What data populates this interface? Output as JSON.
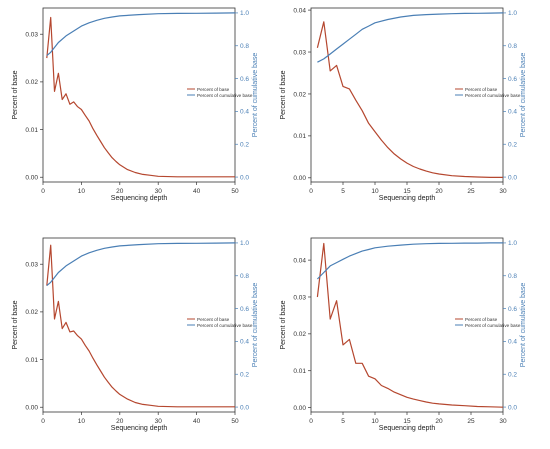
{
  "colors": {
    "percent": "#b5472f",
    "cumulative": "#4a7fb5",
    "axis": "#333333"
  },
  "chart_data": [
    {
      "type": "line",
      "xlabel": "Sequencing depth",
      "ylabel_left": "Percent of base",
      "ylabel_right": "Percent of cumulative base",
      "xlim": [
        0,
        50
      ],
      "xticks": [
        0,
        10,
        20,
        30,
        40,
        50
      ],
      "ylim_left": [
        -0.001,
        0.0355
      ],
      "yticks_left": [
        0.0,
        0.01,
        0.02,
        0.03
      ],
      "ylim_right": [
        -0.03,
        1.03
      ],
      "yticks_right": [
        0.0,
        0.2,
        0.4,
        0.6,
        0.8,
        1.0
      ],
      "legend": "right-center",
      "series": [
        {
          "name": "Percent of base",
          "axis": "left",
          "x": [
            1,
            2,
            3,
            4,
            5,
            6,
            7,
            8,
            9,
            10,
            11,
            12,
            13,
            14,
            15,
            16,
            17,
            18,
            19,
            20,
            22,
            24,
            26,
            28,
            30,
            35,
            40,
            45,
            50
          ],
          "y": [
            0.025,
            0.0335,
            0.018,
            0.0218,
            0.0163,
            0.0175,
            0.0153,
            0.0158,
            0.0148,
            0.0142,
            0.013,
            0.0118,
            0.0102,
            0.0088,
            0.0075,
            0.0062,
            0.0051,
            0.0041,
            0.0033,
            0.0026,
            0.0016,
            0.001,
            0.0006,
            0.0004,
            0.0002,
            0.0001,
            0.0001,
            0.0001,
            0.0001
          ]
        },
        {
          "name": "Percent of cumulative base",
          "axis": "right",
          "x": [
            1,
            2,
            4,
            6,
            8,
            10,
            12,
            14,
            16,
            18,
            20,
            25,
            30,
            35,
            40,
            45,
            50
          ],
          "y": [
            0.74,
            0.76,
            0.82,
            0.86,
            0.89,
            0.92,
            0.94,
            0.955,
            0.967,
            0.975,
            0.982,
            0.99,
            0.995,
            0.997,
            0.998,
            0.999,
            1.0
          ]
        }
      ]
    },
    {
      "type": "line",
      "xlabel": "Sequencing depth",
      "ylabel_left": "Percent of base",
      "ylabel_right": "Percent of cumulative base",
      "xlim": [
        0,
        30
      ],
      "xticks": [
        0,
        5,
        10,
        15,
        20,
        25,
        30
      ],
      "ylim_left": [
        -0.001,
        0.0405
      ],
      "yticks_left": [
        0.0,
        0.01,
        0.02,
        0.03,
        0.04
      ],
      "ylim_right": [
        -0.03,
        1.03
      ],
      "yticks_right": [
        0.0,
        0.2,
        0.4,
        0.6,
        0.8,
        1.0
      ],
      "legend": "right-center",
      "series": [
        {
          "name": "Percent of base",
          "axis": "left",
          "x": [
            1,
            2,
            3,
            4,
            5,
            6,
            7,
            8,
            9,
            10,
            11,
            12,
            13,
            14,
            15,
            16,
            17,
            18,
            19,
            20,
            22,
            24,
            26,
            28,
            30
          ],
          "y": [
            0.031,
            0.0372,
            0.0255,
            0.0268,
            0.0218,
            0.0212,
            0.0185,
            0.016,
            0.013,
            0.011,
            0.009,
            0.0072,
            0.0057,
            0.0045,
            0.0035,
            0.0027,
            0.0021,
            0.0016,
            0.0012,
            0.0009,
            0.0005,
            0.0003,
            0.0002,
            0.0001,
            0.0001
          ]
        },
        {
          "name": "Percent of cumulative base",
          "axis": "right",
          "x": [
            1,
            2,
            3,
            4,
            5,
            6,
            7,
            8,
            9,
            10,
            12,
            14,
            16,
            18,
            20,
            22,
            24,
            26,
            28,
            30
          ],
          "y": [
            0.7,
            0.72,
            0.75,
            0.78,
            0.81,
            0.84,
            0.87,
            0.9,
            0.92,
            0.94,
            0.96,
            0.975,
            0.985,
            0.99,
            0.993,
            0.995,
            0.997,
            0.998,
            0.999,
            1.0
          ]
        }
      ]
    },
    {
      "type": "line",
      "xlabel": "Sequencing depth",
      "ylabel_left": "Percent of base",
      "ylabel_right": "Percent of cumulative base",
      "xlim": [
        0,
        50
      ],
      "xticks": [
        0,
        10,
        20,
        30,
        40,
        50
      ],
      "ylim_left": [
        -0.001,
        0.0355
      ],
      "yticks_left": [
        0.0,
        0.01,
        0.02,
        0.03
      ],
      "ylim_right": [
        -0.03,
        1.03
      ],
      "yticks_right": [
        0.0,
        0.2,
        0.4,
        0.6,
        0.8,
        1.0
      ],
      "legend": "right-center",
      "series": [
        {
          "name": "Percent of base",
          "axis": "left",
          "x": [
            1,
            2,
            3,
            4,
            5,
            6,
            7,
            8,
            9,
            10,
            11,
            12,
            13,
            14,
            15,
            16,
            17,
            18,
            19,
            20,
            22,
            24,
            26,
            28,
            30,
            35,
            40,
            45,
            50
          ],
          "y": [
            0.0255,
            0.034,
            0.0185,
            0.0222,
            0.0165,
            0.0178,
            0.0158,
            0.016,
            0.015,
            0.0143,
            0.013,
            0.0118,
            0.0103,
            0.0089,
            0.0076,
            0.0063,
            0.0052,
            0.0042,
            0.0034,
            0.0027,
            0.0017,
            0.001,
            0.0006,
            0.0004,
            0.0002,
            0.0001,
            0.0001,
            0.0001,
            0.0001
          ]
        },
        {
          "name": "Percent of cumulative base",
          "axis": "right",
          "x": [
            1,
            2,
            4,
            6,
            8,
            10,
            12,
            14,
            16,
            18,
            20,
            25,
            30,
            35,
            40,
            45,
            50
          ],
          "y": [
            0.74,
            0.76,
            0.82,
            0.86,
            0.89,
            0.92,
            0.94,
            0.955,
            0.967,
            0.975,
            0.982,
            0.99,
            0.995,
            0.997,
            0.998,
            0.999,
            1.0
          ]
        }
      ]
    },
    {
      "type": "line",
      "xlabel": "Sequencing depth",
      "ylabel_left": "Percent of base",
      "ylabel_right": "Percent of cumulative base",
      "xlim": [
        0,
        30
      ],
      "xticks": [
        0,
        5,
        10,
        15,
        20,
        25,
        30
      ],
      "ylim_left": [
        -0.0012,
        0.046
      ],
      "yticks_left": [
        0.0,
        0.01,
        0.02,
        0.03,
        0.04
      ],
      "ylim_right": [
        -0.03,
        1.03
      ],
      "yticks_right": [
        0.0,
        0.2,
        0.4,
        0.6,
        0.8,
        1.0
      ],
      "legend": "right-center",
      "series": [
        {
          "name": "Percent of base",
          "axis": "left",
          "x": [
            1,
            2,
            3,
            4,
            5,
            6,
            7,
            8,
            9,
            10,
            11,
            12,
            13,
            14,
            15,
            16,
            17,
            18,
            19,
            20,
            22,
            24,
            26,
            28,
            30
          ],
          "y": [
            0.03,
            0.0445,
            0.024,
            0.029,
            0.017,
            0.0185,
            0.012,
            0.012,
            0.0085,
            0.0078,
            0.006,
            0.0052,
            0.0042,
            0.0035,
            0.0028,
            0.0023,
            0.0019,
            0.0015,
            0.0012,
            0.001,
            0.0007,
            0.0005,
            0.0003,
            0.0002,
            0.0001
          ]
        },
        {
          "name": "Percent of cumulative base",
          "axis": "right",
          "x": [
            1,
            2,
            3,
            4,
            5,
            6,
            7,
            8,
            9,
            10,
            12,
            14,
            16,
            18,
            20,
            22,
            24,
            26,
            28,
            30
          ],
          "y": [
            0.78,
            0.82,
            0.86,
            0.88,
            0.9,
            0.92,
            0.935,
            0.95,
            0.96,
            0.97,
            0.98,
            0.987,
            0.992,
            0.995,
            0.997,
            0.998,
            0.999,
            0.999,
            1.0,
            1.0
          ]
        }
      ]
    }
  ]
}
